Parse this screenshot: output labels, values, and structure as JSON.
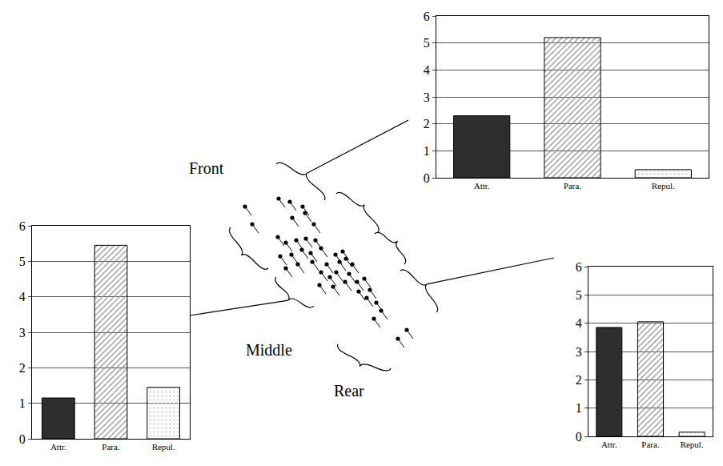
{
  "chart_data": [
    {
      "type": "bar",
      "title": "Front",
      "categories": [
        "Attr.",
        "Para.",
        "Repul."
      ],
      "values": [
        2.3,
        5.2,
        0.3
      ],
      "colors": [
        "#2e2e2e",
        "#8f8f8f",
        "#dcdcdc"
      ],
      "ylim": [
        0,
        6
      ],
      "yticks": [
        0,
        1,
        2,
        3,
        4,
        5,
        6
      ],
      "grid": true
    },
    {
      "type": "bar",
      "title": "Middle",
      "categories": [
        "Attr.",
        "Para.",
        "Repul."
      ],
      "values": [
        1.15,
        5.45,
        1.45
      ],
      "colors": [
        "#2e2e2e",
        "#8f8f8f",
        "#dcdcdc"
      ],
      "ylim": [
        0,
        6
      ],
      "yticks": [
        0,
        1,
        2,
        3,
        4,
        5,
        6
      ],
      "grid": true
    },
    {
      "type": "bar",
      "title": "Rear",
      "categories": [
        "Attr.",
        "Para.",
        "Repul."
      ],
      "values": [
        3.85,
        4.05,
        0.15
      ],
      "colors": [
        "#2e2e2e",
        "#8f8f8f",
        "#dcdcdc"
      ],
      "ylim": [
        0,
        6
      ],
      "yticks": [
        0,
        1,
        2,
        3,
        4,
        5,
        6
      ],
      "grid": true
    }
  ]
}
